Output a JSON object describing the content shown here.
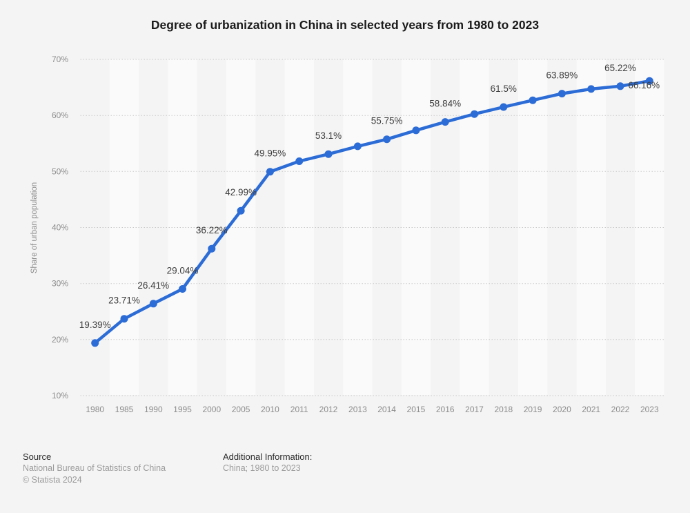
{
  "chart_data": {
    "type": "line",
    "title": "Degree of urbanization in China in selected years from 1980 to 2023",
    "ylabel": "Share of urban population",
    "xlabel": "",
    "categories": [
      "1980",
      "1985",
      "1990",
      "1995",
      "2000",
      "2005",
      "2010",
      "2011",
      "2012",
      "2013",
      "2014",
      "2015",
      "2016",
      "2017",
      "2018",
      "2019",
      "2020",
      "2021",
      "2022",
      "2023"
    ],
    "values": [
      19.39,
      23.71,
      26.41,
      29.04,
      36.22,
      42.99,
      49.95,
      51.83,
      53.1,
      54.49,
      55.75,
      57.33,
      58.84,
      60.24,
      61.5,
      62.71,
      63.89,
      64.72,
      65.22,
      66.16
    ],
    "point_labels": [
      "19.39%",
      "23.71%",
      "26.41%",
      "29.04%",
      "36.22%",
      "42.99%",
      "49.95%",
      null,
      "53.1%",
      null,
      "55.75%",
      null,
      "58.84%",
      null,
      "61.5%",
      null,
      "63.89%",
      null,
      "65.22%",
      "66.16%"
    ],
    "y_ticks": [
      10,
      20,
      30,
      40,
      50,
      60,
      70
    ],
    "y_tick_suffix": "%",
    "ylim": [
      10,
      70
    ],
    "grid": "horizontal-dotted",
    "plot_bands": "alternating-vertical",
    "legend": "none",
    "colors": {
      "line": "#2c6cd6",
      "stripe": "#fafafa",
      "background": "#f4f4f4",
      "grid": "#c9c9c9",
      "axis_text": "#8c8c8c",
      "point_label": "#3d3d3d",
      "title": "#1a1a1a"
    }
  },
  "footer": {
    "source_label": "Source",
    "source_name": "National Bureau of Statistics of China",
    "copyright": "© Statista 2024",
    "additional_info_label": "Additional Information:",
    "additional_info_value": "China; 1980 to 2023"
  }
}
